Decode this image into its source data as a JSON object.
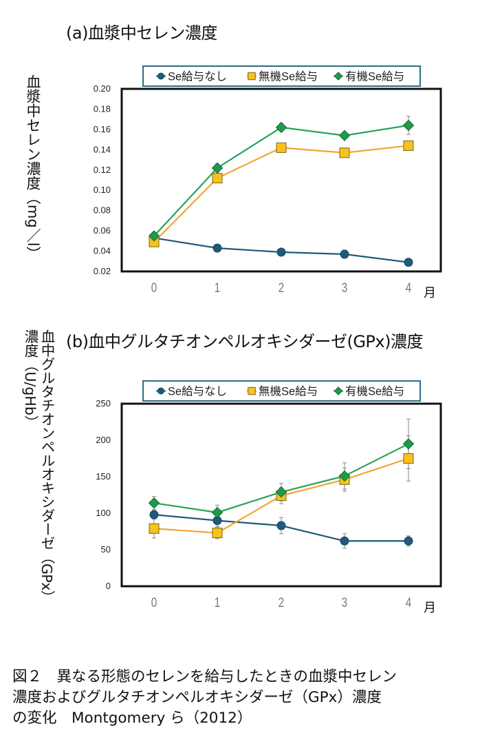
{
  "chart_data": [
    {
      "type": "line",
      "title": "(a)血漿中セレン濃度",
      "xlabel": "月",
      "ylabel": "血漿中セレン濃度（mg/l）",
      "x": [
        0,
        1,
        2,
        3,
        4
      ],
      "x_tick_labels": [
        "0",
        "1",
        "2",
        "3",
        "4"
      ],
      "ylim": [
        0.02,
        0.2
      ],
      "y_tick_labels": [
        "0.02",
        "0.04",
        "0.06",
        "0.08",
        "0.10",
        "0.12",
        "0.14",
        "0.16",
        "0.18",
        "0.20"
      ],
      "y_ticks": [
        0.02,
        0.04,
        0.06,
        0.08,
        0.1,
        0.12,
        0.14,
        0.16,
        0.18,
        0.2
      ],
      "grid": false,
      "legend_position": "top",
      "series": [
        {
          "name": "Se給与なし",
          "marker": "circle",
          "color": "#1f5a7a",
          "values": [
            0.053,
            0.043,
            0.039,
            0.037,
            0.029
          ],
          "errors": [
            0.002,
            0.002,
            0.002,
            0.004,
            0.001
          ]
        },
        {
          "name": "無機Se給与",
          "marker": "square",
          "color": "#f2a531",
          "fill": "#f7c21b",
          "values": [
            0.049,
            0.112,
            0.142,
            0.137,
            0.144
          ],
          "errors": [
            0.003,
            0.004,
            0.004,
            0.004,
            0.003
          ]
        },
        {
          "name": "有機Se給与",
          "marker": "diamond",
          "color": "#25a25a",
          "fill": "#1f9a4c",
          "values": [
            0.055,
            0.122,
            0.162,
            0.154,
            0.164
          ],
          "errors": [
            0.002,
            0.004,
            0.004,
            0.002,
            0.009
          ]
        }
      ]
    },
    {
      "type": "line",
      "title": "(b)血中グルタチオンペルオキシダーゼ(GPx)濃度",
      "xlabel": "月",
      "ylabel": "血中グルタチオンペルオキシダーゼ（GPx）濃度（U/gHb）",
      "x": [
        0,
        1,
        2,
        3,
        4
      ],
      "x_tick_labels": [
        "0",
        "1",
        "2",
        "3",
        "4"
      ],
      "ylim": [
        0,
        250
      ],
      "y_tick_labels": [
        "0",
        "50",
        "100",
        "150",
        "200",
        "250"
      ],
      "y_ticks": [
        0,
        50,
        100,
        150,
        200,
        250
      ],
      "grid": false,
      "legend_position": "top",
      "series": [
        {
          "name": "Se給与なし",
          "marker": "circle",
          "color": "#1f5a7a",
          "values": [
            98,
            90,
            83,
            62,
            62
          ],
          "errors": [
            6,
            8,
            11,
            10,
            7
          ]
        },
        {
          "name": "無機Se給与",
          "marker": "square",
          "color": "#f2a531",
          "fill": "#f7c21b",
          "values": [
            79,
            73,
            124,
            146,
            175
          ],
          "errors": [
            13,
            8,
            11,
            16,
            31
          ]
        },
        {
          "name": "有機Se給与",
          "marker": "diamond",
          "color": "#25a25a",
          "fill": "#1f9a4c",
          "values": [
            114,
            101,
            129,
            151,
            195
          ],
          "errors": [
            9,
            10,
            12,
            18,
            34
          ]
        }
      ]
    }
  ],
  "charts": {
    "a": {
      "title": "(a)血漿中セレン濃度",
      "ylabel": "血漿中セレン濃度（mg／l）",
      "xunit": "月"
    },
    "b": {
      "title": "(b)血中グルタチオンペルオキシダーゼ(GPx)濃度",
      "ylabel_col1": "血中グルタチオンペルオキシダーゼ（GPx）",
      "ylabel_col2": "濃度（U/gHb）",
      "xunit": "月"
    }
  },
  "legend": [
    "Se給与なし",
    "無機Se給与",
    "有機Se給与"
  ],
  "caption": {
    "line1": "図２　異なる形態のセレンを給与したときの血漿中セレン",
    "line2": "濃度およびグルタチオンペルオキシダーゼ（GPx）濃度",
    "line3": "の変化　Montgomery ら（2012）"
  }
}
